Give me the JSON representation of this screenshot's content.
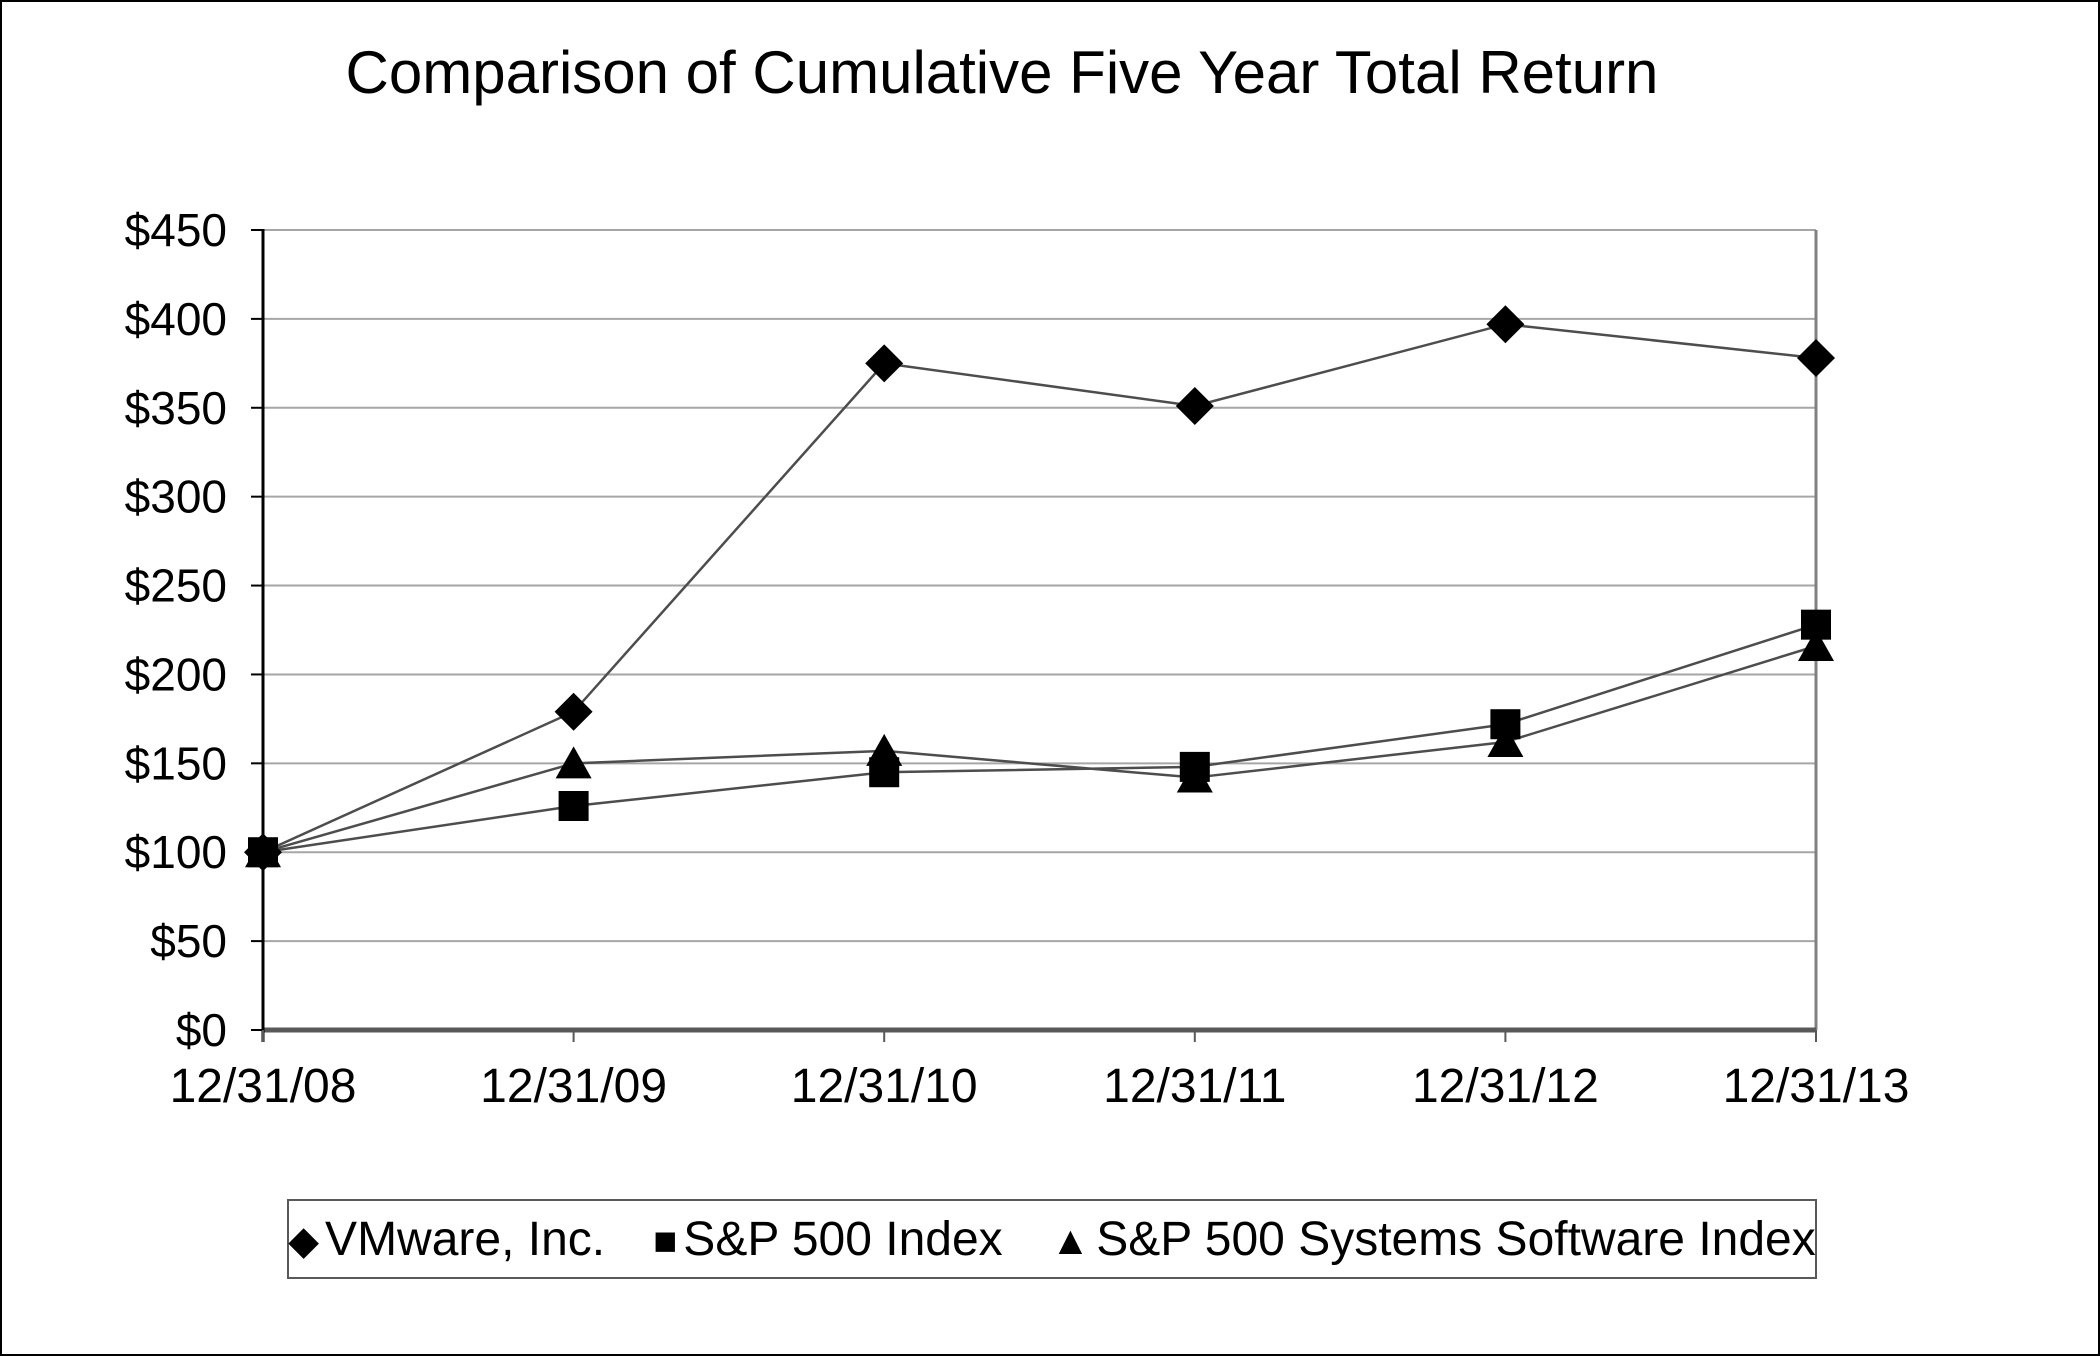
{
  "page_title": "Comparison of Cumulative Five Year Total Return",
  "chart_data": {
    "type": "line",
    "title": "Comparison of Cumulative Five Year Total Return",
    "categories": [
      "12/31/08",
      "12/31/09",
      "12/31/10",
      "12/31/11",
      "12/31/12",
      "12/31/13"
    ],
    "series": [
      {
        "name": "VMware, Inc.",
        "marker": "diamond",
        "values": [
          100,
          179,
          375,
          351,
          397,
          378
        ]
      },
      {
        "name": "S&P 500 Index",
        "marker": "square",
        "values": [
          100,
          126,
          145,
          148,
          172,
          228
        ]
      },
      {
        "name": "S&P 500 Systems Software Index",
        "marker": "triangle",
        "values": [
          100,
          150,
          157,
          142,
          162,
          216
        ]
      }
    ],
    "ylim": [
      0,
      450
    ],
    "y_tick_step": 50,
    "y_ticks": [
      "$450",
      "$400",
      "$350",
      "$300",
      "$250",
      "$200",
      "$150",
      "$100",
      "$50",
      "$0"
    ],
    "y_tick_prefix": "$",
    "grid": "horizontal-only",
    "legend_position": "bottom",
    "marker_glyphs": {
      "diamond": "◆",
      "square": "■",
      "triangle": "▲"
    },
    "colors": {
      "marker": "#000000",
      "series_line": "#4d4d4d",
      "gridline": "#a6a6a6",
      "axis_left": "#000000",
      "axis_bottom": "#595959",
      "axis_right": "#808080",
      "axis_top": "#a6a6a6",
      "text": "#000000",
      "background": "#ffffff",
      "legend_border": "#595959"
    }
  }
}
